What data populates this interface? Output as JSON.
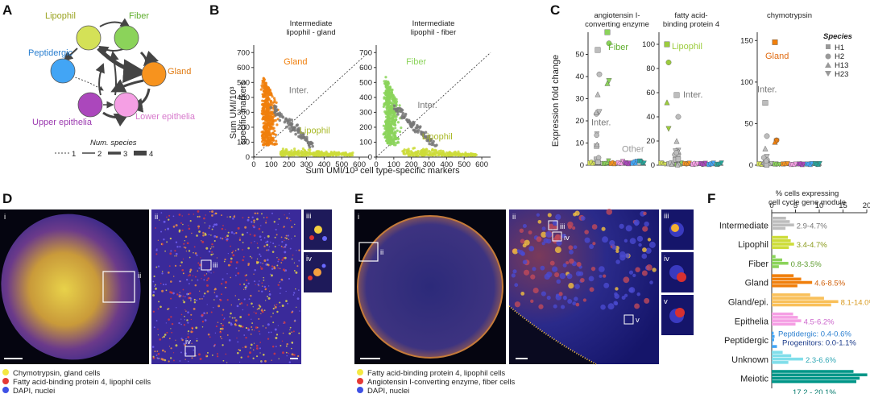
{
  "panels": {
    "A": "A",
    "B": "B",
    "C": "C",
    "D": "D",
    "E": "E",
    "F": "F"
  },
  "panelA": {
    "nodes": {
      "lipophil": {
        "label": "Lipophil",
        "color": "#d4e157"
      },
      "fiber": {
        "label": "Fiber",
        "color": "#8bd35a"
      },
      "peptidergic": {
        "label": "Peptidergic",
        "color": "#42a5f5"
      },
      "gland": {
        "label": "Gland",
        "color": "#f7931e"
      },
      "upper": {
        "label": "Upper epithelia",
        "color": "#ab47bc"
      },
      "lower": {
        "label": "Lower epithelia",
        "color": "#f59fe4"
      }
    },
    "legend_title": "Num. species",
    "legend_items": [
      "1",
      "2",
      "3",
      "4"
    ]
  },
  "panelB": {
    "xlabel": "Sum UMI/10³ cell type-specific markers",
    "ylabel_line1": "Sum UMI/10³",
    "ylabel_line2": "specific markers",
    "xticks": [
      0,
      100,
      200,
      300,
      400,
      500,
      600
    ],
    "yticks": [
      0,
      100,
      200,
      300,
      400,
      500,
      600,
      700
    ],
    "plots": [
      {
        "title_line1": "Intermediate",
        "title_line2": "lipophil - gland",
        "upper_label": "Gland",
        "upper_color": "#f07f0c",
        "lower_label": "Lipophil",
        "lower_color": "#cddc39",
        "mid_label": "Inter."
      },
      {
        "title_line1": "Intermediate",
        "title_line2": "lipophil - fiber",
        "upper_label": "Fiber",
        "upper_color": "#8bd35a",
        "lower_label": "Lipophil",
        "lower_color": "#cddc39",
        "mid_label": "Inter."
      }
    ]
  },
  "panelC": {
    "ylabel": "Expression fold change",
    "plots": [
      {
        "title_line1": "angiotensin I-",
        "title_line2": "converting enzyme",
        "ymax": 60,
        "yticks": [
          0,
          10,
          20,
          30,
          40,
          50
        ],
        "highlight": "Fiber",
        "highlight_color": "#8bd35a",
        "inter": "Inter.",
        "other": "Other"
      },
      {
        "title_line1": "fatty acid-",
        "title_line2": "binding protein 4",
        "ymax": 110,
        "yticks": [
          0,
          20,
          40,
          60,
          80,
          100
        ],
        "highlight": "Lipophil",
        "highlight_color": "#9ccc3d",
        "inter": "Inter."
      },
      {
        "title_line1": "chymotrypsin",
        "title_line2": "",
        "ymax": 160,
        "yticks": [
          0,
          50,
          100,
          150
        ],
        "highlight": "Gland",
        "highlight_color": "#f07f0c",
        "inter": "Inter."
      }
    ],
    "species_title": "Species",
    "species": [
      "H1",
      "H2",
      "H13",
      "H23"
    ]
  },
  "panelD": {
    "sub": [
      "i",
      "ii",
      "iii",
      "iv"
    ],
    "legend": [
      {
        "color": "#f4e842",
        "text": "Chymotrypsin, gland cells"
      },
      {
        "color": "#e53935",
        "text": "Fatty acid-binding protein 4, lipophil cells"
      },
      {
        "color": "#3f51e5",
        "text": "DAPI, nuclei"
      }
    ]
  },
  "panelE": {
    "sub": [
      "i",
      "ii",
      "iii",
      "iv",
      "v"
    ],
    "legend": [
      {
        "color": "#f4e842",
        "text": "Fatty acid-binding protein 4, lipophil cells"
      },
      {
        "color": "#e53935",
        "text": "Angiotensin I-converting enzyme, fiber cells"
      },
      {
        "color": "#3f51e5",
        "text": "DAPI, nuclei"
      }
    ]
  },
  "panelF": {
    "title_line1": "% cells expressing",
    "title_line2": "cell cycle gene module",
    "xticks": [
      0,
      5,
      10,
      15,
      20
    ],
    "xmax": 20,
    "groups": [
      {
        "name": "Intermediate",
        "range": "2.9-4.7%",
        "color": "#bdbdbd",
        "text_color": "#777777",
        "values": [
          3.0,
          3.8,
          4.7,
          2.9
        ]
      },
      {
        "name": "Lipophil",
        "range": "3.4-4.7%",
        "color": "#cddc39",
        "text_color": "#8a9a1a",
        "values": [
          3.4,
          4.0,
          4.7,
          3.6
        ]
      },
      {
        "name": "Fiber",
        "range": "0.8-3.5%",
        "color": "#8bd35a",
        "text_color": "#5a9a2a",
        "values": [
          0.8,
          2.2,
          3.5,
          1.5
        ]
      },
      {
        "name": "Gland",
        "range": "4.6-8.5%",
        "color": "#f07f0c",
        "text_color": "#d0600a",
        "values": [
          4.6,
          6.2,
          8.5,
          5.4
        ]
      },
      {
        "name": "Gland/epi.",
        "range": "8.1-14.0%",
        "color": "#f9c05a",
        "text_color": "#d89a20",
        "values": [
          8.1,
          11.0,
          14.0,
          12.5
        ]
      },
      {
        "name": "Epithelia",
        "range": "4.5-6.2%",
        "color": "#f59fe4",
        "text_color": "#cc66cc",
        "values": [
          4.5,
          5.5,
          6.2,
          5.0
        ]
      },
      {
        "name": "Peptidergic",
        "range": "Peptidergic: 0.4-0.6%",
        "range2": "Progenitors: 0.0-1.1%",
        "color": "#42a5f5",
        "text_color": "#2a7fd0",
        "text2_color": "#1a3a8a",
        "values": [
          0.4,
          0.6,
          0.5,
          0.0,
          1.1
        ]
      },
      {
        "name": "Unknown",
        "range": "2.3-6.6%",
        "color": "#80deea",
        "text_color": "#2fa7b5",
        "values": [
          2.3,
          4.1,
          6.6,
          3.5
        ]
      },
      {
        "name": "Meiotic",
        "range": "17.2 - 20.1%",
        "color": "#009688",
        "text_color": "#00796b",
        "values": [
          17.2,
          20.1,
          18.5,
          17.8
        ]
      }
    ]
  }
}
